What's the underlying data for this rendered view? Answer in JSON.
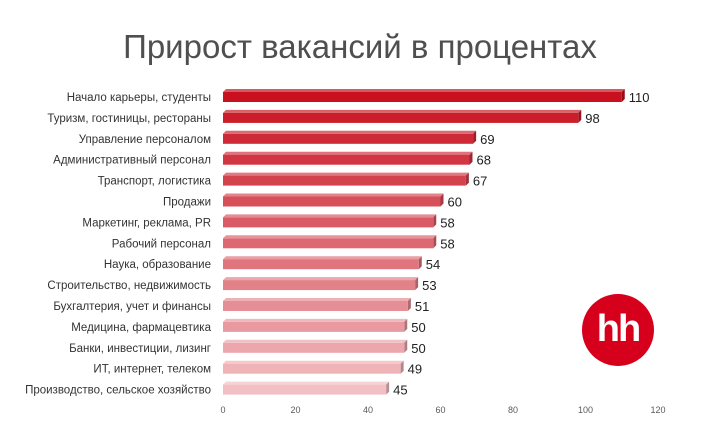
{
  "chart_data": {
    "type": "bar",
    "orientation": "horizontal",
    "title": "Прирост вакансий в процентах",
    "categories": [
      "Начало карьеры, студенты",
      "Туризм, гостиницы, рестораны",
      "Управление персоналом",
      "Административный персонал",
      "Транспорт, логистика",
      "Продажи",
      "Маркетинг, реклама, PR",
      "Рабочий персонал",
      "Наука, образование",
      "Строительство, недвижимость",
      "Бухгалтерия, учет и финансы",
      "Медицина, фармацевтика",
      "Банки, инвестиции, лизинг",
      "ИТ, интернет, телеком",
      "Производство, сельское хозяйство"
    ],
    "values": [
      110,
      98,
      69,
      68,
      67,
      60,
      58,
      58,
      54,
      53,
      51,
      50,
      50,
      49,
      45
    ],
    "xlim": [
      0,
      120
    ],
    "xticks": [
      "0",
      "20",
      "40",
      "60",
      "80",
      "100",
      "120"
    ],
    "grid": false,
    "legend": "none",
    "bar_color_start": "#c8101e",
    "bar_color_end": "#f2c0c4"
  },
  "logo": {
    "text": "hh",
    "color": "#d6001c"
  }
}
